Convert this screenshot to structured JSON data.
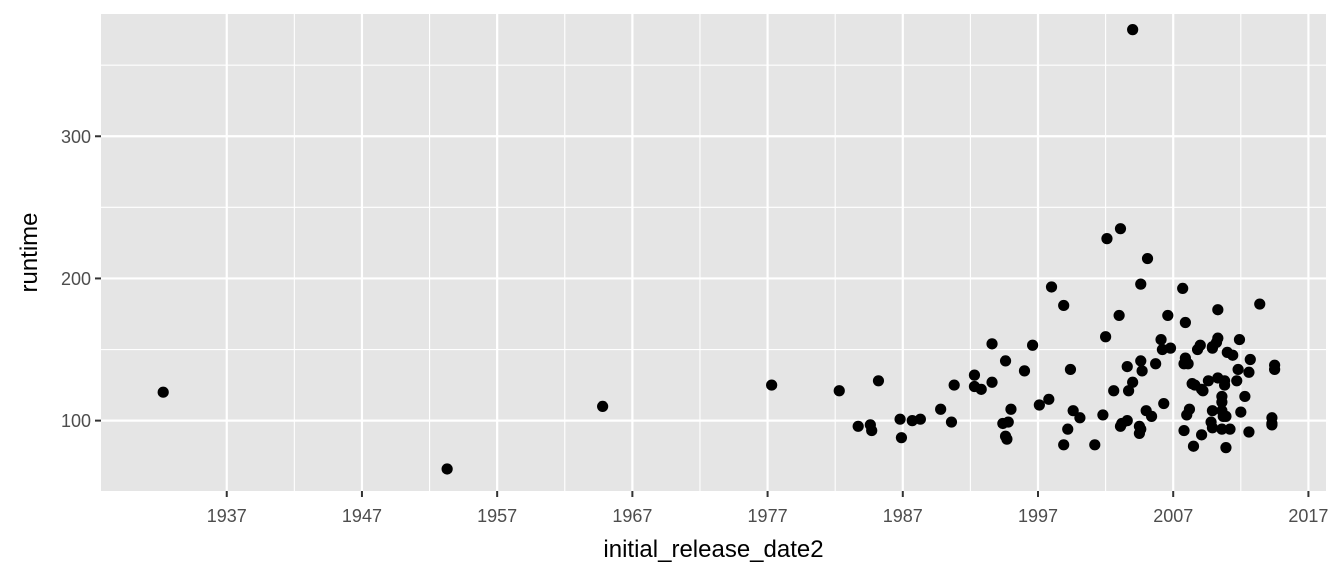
{
  "chart_data": {
    "type": "scatter",
    "xlabel": "initial_release_date2",
    "ylabel": "runtime",
    "x_type": "year",
    "xlim": [
      1927.7,
      2018.3
    ],
    "ylim": [
      50.5,
      386
    ],
    "x_ticks": [
      1937,
      1947,
      1957,
      1967,
      1977,
      1987,
      1997,
      2007,
      2017
    ],
    "y_ticks": [
      100,
      200,
      300
    ],
    "grid": true,
    "legend": "none",
    "colors": {
      "panel_background": "#e5e5e5",
      "grid": "#ffffff",
      "point": "#000000"
    },
    "points": [
      [
        1932.3,
        120
      ],
      [
        1953.3,
        66
      ],
      [
        1964.8,
        110
      ],
      [
        1977.3,
        125
      ],
      [
        1982.3,
        121
      ],
      [
        1983.7,
        96
      ],
      [
        1984.6,
        97
      ],
      [
        1984.7,
        93
      ],
      [
        1985.2,
        128
      ],
      [
        1986.8,
        101
      ],
      [
        1986.9,
        88
      ],
      [
        1987.7,
        100
      ],
      [
        1988.3,
        101
      ],
      [
        1989.8,
        108
      ],
      [
        1990.6,
        99
      ],
      [
        1990.8,
        125
      ],
      [
        1992.3,
        132
      ],
      [
        1992.3,
        124
      ],
      [
        1992.8,
        122
      ],
      [
        1993.6,
        127
      ],
      [
        1993.6,
        154
      ],
      [
        1994.4,
        98
      ],
      [
        1994.6,
        89
      ],
      [
        1994.6,
        142
      ],
      [
        1994.7,
        87
      ],
      [
        1994.8,
        99
      ],
      [
        1995.0,
        108
      ],
      [
        1996.0,
        135
      ],
      [
        1996.6,
        153
      ],
      [
        1997.1,
        111
      ],
      [
        1997.8,
        115
      ],
      [
        1998.0,
        194
      ],
      [
        1998.9,
        83
      ],
      [
        1998.9,
        181
      ],
      [
        1999.2,
        94
      ],
      [
        1999.4,
        136
      ],
      [
        1999.6,
        107
      ],
      [
        2000.1,
        102
      ],
      [
        2001.2,
        83
      ],
      [
        2001.8,
        104
      ],
      [
        2002.0,
        159
      ],
      [
        2002.1,
        228
      ],
      [
        2002.6,
        121
      ],
      [
        2003.0,
        174
      ],
      [
        2003.1,
        235
      ],
      [
        2003.1,
        96
      ],
      [
        2003.2,
        98
      ],
      [
        2003.6,
        138
      ],
      [
        2003.6,
        100
      ],
      [
        2003.7,
        121
      ],
      [
        2004.0,
        127
      ],
      [
        2004.0,
        375
      ],
      [
        2004.5,
        96
      ],
      [
        2004.5,
        91
      ],
      [
        2004.6,
        196
      ],
      [
        2004.6,
        142
      ],
      [
        2004.6,
        94
      ],
      [
        2004.7,
        135
      ],
      [
        2005.0,
        107
      ],
      [
        2005.1,
        214
      ],
      [
        2005.4,
        103
      ],
      [
        2005.7,
        140
      ],
      [
        2006.1,
        157
      ],
      [
        2006.2,
        150
      ],
      [
        2006.3,
        112
      ],
      [
        2006.6,
        174
      ],
      [
        2006.8,
        151
      ],
      [
        2007.7,
        193
      ],
      [
        2007.8,
        93
      ],
      [
        2007.8,
        140
      ],
      [
        2007.9,
        169
      ],
      [
        2007.9,
        144
      ],
      [
        2008.0,
        104
      ],
      [
        2008.1,
        140
      ],
      [
        2008.2,
        108
      ],
      [
        2008.4,
        126
      ],
      [
        2008.5,
        82
      ],
      [
        2008.6,
        125
      ],
      [
        2008.8,
        150
      ],
      [
        2009.0,
        153
      ],
      [
        2009.1,
        90
      ],
      [
        2009.1,
        122
      ],
      [
        2009.2,
        121
      ],
      [
        2009.6,
        128
      ],
      [
        2009.8,
        99
      ],
      [
        2009.9,
        151
      ],
      [
        2009.9,
        152
      ],
      [
        2009.9,
        107
      ],
      [
        2009.9,
        95
      ],
      [
        2010.2,
        155
      ],
      [
        2010.3,
        158
      ],
      [
        2010.3,
        130
      ],
      [
        2010.3,
        178
      ],
      [
        2010.6,
        117
      ],
      [
        2010.6,
        113
      ],
      [
        2010.6,
        107
      ],
      [
        2010.6,
        94
      ],
      [
        2010.7,
        103
      ],
      [
        2010.8,
        125
      ],
      [
        2010.8,
        128
      ],
      [
        2010.9,
        81
      ],
      [
        2010.9,
        103
      ],
      [
        2011.0,
        148
      ],
      [
        2011.2,
        94
      ],
      [
        2011.4,
        146
      ],
      [
        2011.7,
        128
      ],
      [
        2011.8,
        136
      ],
      [
        2011.9,
        157
      ],
      [
        2012.0,
        106
      ],
      [
        2012.3,
        117
      ],
      [
        2012.6,
        92
      ],
      [
        2012.6,
        134
      ],
      [
        2012.7,
        143
      ],
      [
        2013.4,
        182
      ],
      [
        2014.3,
        102
      ],
      [
        2014.3,
        98
      ],
      [
        2014.3,
        97
      ],
      [
        2014.5,
        136
      ],
      [
        2014.5,
        139
      ]
    ]
  }
}
